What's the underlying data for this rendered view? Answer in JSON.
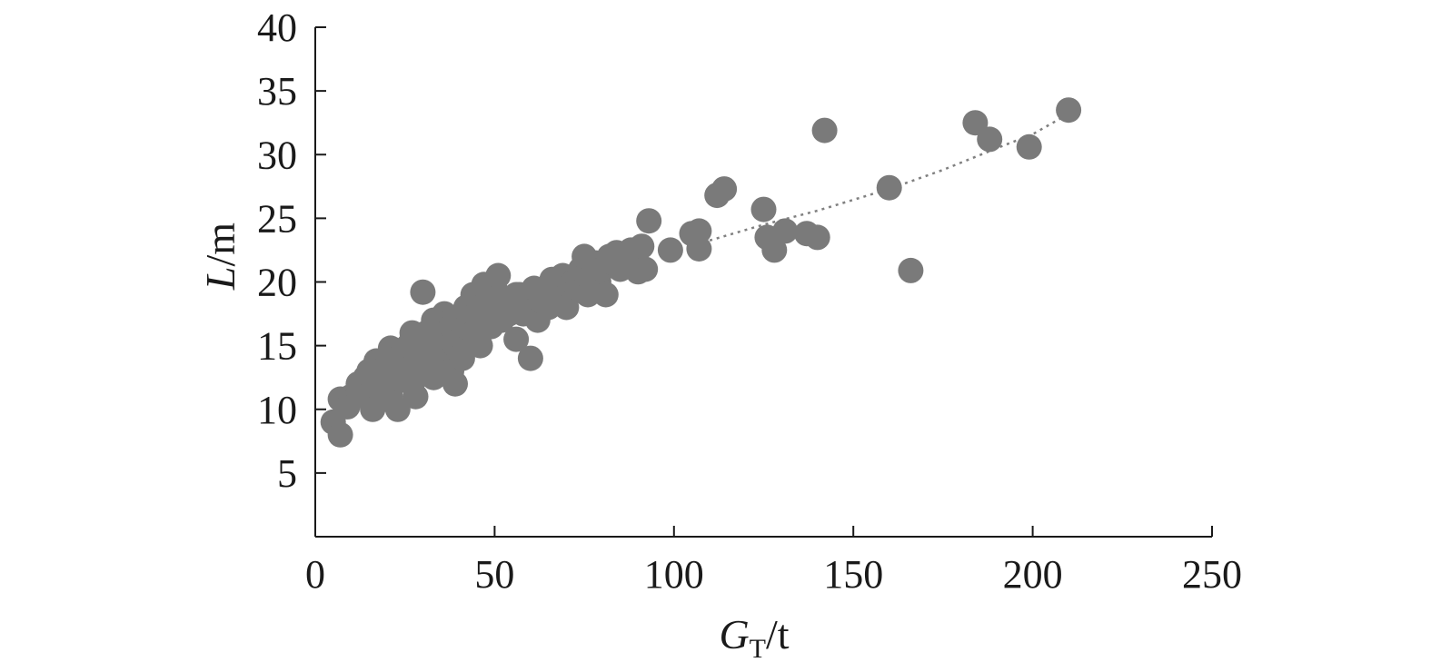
{
  "chart_data": {
    "type": "scatter",
    "title": "",
    "xlabel": {
      "main": "G",
      "sub": "T",
      "unit": "/t"
    },
    "ylabel": {
      "main": "L",
      "unit": "/m"
    },
    "xlim": [
      0,
      250
    ],
    "ylim": [
      0,
      40
    ],
    "xticks": [
      0,
      50,
      100,
      150,
      200,
      250
    ],
    "yticks": [
      5,
      10,
      15,
      20,
      25,
      30,
      35,
      40
    ],
    "grid": false,
    "legend": "none",
    "marker_color": "#7a7a7a",
    "fit_color": "#808080",
    "series": [
      {
        "points": [
          [
            5,
            9
          ],
          [
            7,
            8
          ],
          [
            7,
            10.8
          ],
          [
            9,
            10.2
          ],
          [
            10,
            11
          ],
          [
            12,
            11.5
          ],
          [
            12,
            12
          ],
          [
            14,
            12.5
          ],
          [
            14,
            11
          ],
          [
            15,
            13
          ],
          [
            16,
            10
          ],
          [
            17,
            12
          ],
          [
            17,
            13.8
          ],
          [
            18,
            11.5
          ],
          [
            18,
            13
          ],
          [
            19,
            12.2
          ],
          [
            20,
            13.5
          ],
          [
            20,
            12
          ],
          [
            21,
            14.8
          ],
          [
            21,
            11
          ],
          [
            22,
            13
          ],
          [
            22,
            12.5
          ],
          [
            23,
            10
          ],
          [
            23,
            14
          ],
          [
            24,
            12.3
          ],
          [
            25,
            13.5
          ],
          [
            26,
            13
          ],
          [
            26,
            15
          ],
          [
            27,
            16
          ],
          [
            27,
            12
          ],
          [
            28,
            14.5
          ],
          [
            28,
            11
          ],
          [
            29,
            13.5
          ],
          [
            30,
            15
          ],
          [
            30,
            19.2
          ],
          [
            31,
            14
          ],
          [
            31,
            16
          ],
          [
            32,
            15.5
          ],
          [
            32,
            13
          ],
          [
            33,
            12.5
          ],
          [
            33,
            17
          ],
          [
            34,
            16
          ],
          [
            34,
            14
          ],
          [
            35,
            15
          ],
          [
            35,
            13.5
          ],
          [
            36,
            17.5
          ],
          [
            36,
            16
          ],
          [
            37,
            14.5
          ],
          [
            37,
            15.5
          ],
          [
            38,
            17
          ],
          [
            38,
            16.5
          ],
          [
            38,
            13
          ],
          [
            39,
            12
          ],
          [
            39,
            15
          ],
          [
            40,
            16
          ],
          [
            40,
            17
          ],
          [
            41,
            15.5
          ],
          [
            41,
            14
          ],
          [
            42,
            18
          ],
          [
            42,
            16.5
          ],
          [
            43,
            17
          ],
          [
            43,
            15
          ],
          [
            44,
            19
          ],
          [
            44,
            16
          ],
          [
            45,
            17.5
          ],
          [
            46,
            18
          ],
          [
            46,
            15
          ],
          [
            47,
            19.8
          ],
          [
            48,
            17
          ],
          [
            48,
            18.5
          ],
          [
            49,
            16.5
          ],
          [
            50,
            18
          ],
          [
            50,
            19.5
          ],
          [
            51,
            20.5
          ],
          [
            52,
            17
          ],
          [
            53,
            18.5
          ],
          [
            54,
            17.5
          ],
          [
            55,
            18
          ],
          [
            56,
            19
          ],
          [
            56,
            15.5
          ],
          [
            57,
            19
          ],
          [
            58,
            17.5
          ],
          [
            59,
            18
          ],
          [
            60,
            14
          ],
          [
            61,
            19.5
          ],
          [
            62,
            17
          ],
          [
            63,
            18.5
          ],
          [
            64,
            19
          ],
          [
            65,
            18
          ],
          [
            66,
            20.2
          ],
          [
            67,
            19.5
          ],
          [
            68,
            18.5
          ],
          [
            69,
            20.5
          ],
          [
            70,
            18
          ],
          [
            71,
            19.8
          ],
          [
            72,
            20
          ],
          [
            73,
            19.5
          ],
          [
            74,
            21
          ],
          [
            75,
            22
          ],
          [
            76,
            19
          ],
          [
            77,
            20.5
          ],
          [
            78,
            21.5
          ],
          [
            79,
            20
          ],
          [
            80,
            21
          ],
          [
            81,
            19
          ],
          [
            82,
            22
          ],
          [
            83,
            21.5
          ],
          [
            84,
            22.3
          ],
          [
            85,
            21
          ],
          [
            86,
            21.5
          ],
          [
            88,
            22.5
          ],
          [
            89,
            21.5
          ],
          [
            90,
            20.8
          ],
          [
            91,
            22.8
          ],
          [
            92,
            21
          ],
          [
            93,
            24.8
          ],
          [
            99,
            22.5
          ],
          [
            105,
            23.8
          ],
          [
            107,
            24
          ],
          [
            107,
            22.6
          ],
          [
            112,
            26.8
          ],
          [
            114,
            27.3
          ],
          [
            125,
            25.7
          ],
          [
            126,
            23.5
          ],
          [
            128,
            22.5
          ],
          [
            131,
            24
          ],
          [
            137,
            23.8
          ],
          [
            140,
            23.5
          ],
          [
            142,
            31.9
          ],
          [
            160,
            27.4
          ],
          [
            166,
            20.9
          ],
          [
            184,
            32.5
          ],
          [
            188,
            31.2
          ],
          [
            199,
            30.6
          ],
          [
            210,
            33.5
          ]
        ]
      }
    ],
    "fit_points": [
      [
        108,
        23.1
      ],
      [
        125,
        24.5
      ],
      [
        140,
        25.6
      ],
      [
        160,
        27.3
      ],
      [
        175,
        28.8
      ],
      [
        190,
        30.5
      ],
      [
        200,
        31.6
      ],
      [
        210,
        33.2
      ]
    ]
  }
}
